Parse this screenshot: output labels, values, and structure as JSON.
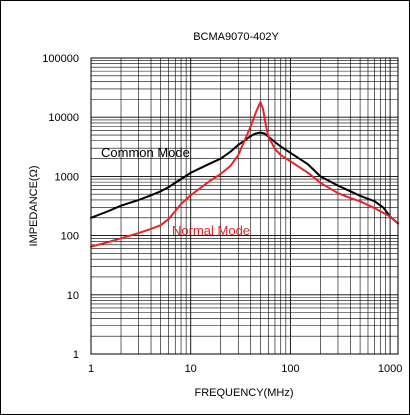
{
  "chart_data": {
    "type": "line",
    "title": "BCMA9070-402Y",
    "xlabel": "FREQUENCY(MHz)",
    "ylabel": "IMPEDANCE(Ω)",
    "x_scale": "log",
    "y_scale": "log",
    "xlim": [
      1,
      1200
    ],
    "ylim": [
      1,
      100000
    ],
    "x_ticks": [
      "1",
      "10",
      "100",
      "1000"
    ],
    "y_ticks": [
      "1",
      "10",
      "100",
      "1000",
      "10000",
      "100000"
    ],
    "grid": true,
    "series": [
      {
        "name": "Common Mode",
        "color": "#000000",
        "points": [
          [
            1,
            200
          ],
          [
            1.5,
            260
          ],
          [
            2,
            320
          ],
          [
            3,
            400
          ],
          [
            4,
            480
          ],
          [
            5,
            560
          ],
          [
            6,
            660
          ],
          [
            8,
            900
          ],
          [
            10,
            1150
          ],
          [
            15,
            1600
          ],
          [
            20,
            2000
          ],
          [
            25,
            2600
          ],
          [
            30,
            3400
          ],
          [
            40,
            4800
          ],
          [
            45,
            5300
          ],
          [
            50,
            5500
          ],
          [
            55,
            5300
          ],
          [
            60,
            4700
          ],
          [
            70,
            3800
          ],
          [
            80,
            3200
          ],
          [
            100,
            2500
          ],
          [
            150,
            1600
          ],
          [
            200,
            1000
          ],
          [
            300,
            700
          ],
          [
            400,
            560
          ],
          [
            500,
            470
          ],
          [
            700,
            380
          ],
          [
            850,
            300
          ],
          [
            1000,
            210
          ],
          [
            1200,
            160
          ]
        ]
      },
      {
        "name": "Normal Mode",
        "color": "#e8242a",
        "points": [
          [
            1,
            65
          ],
          [
            1.5,
            78
          ],
          [
            2,
            90
          ],
          [
            3,
            110
          ],
          [
            4,
            130
          ],
          [
            5,
            150
          ],
          [
            6,
            190
          ],
          [
            7,
            260
          ],
          [
            8,
            340
          ],
          [
            10,
            480
          ],
          [
            15,
            800
          ],
          [
            20,
            1100
          ],
          [
            25,
            1500
          ],
          [
            30,
            2300
          ],
          [
            40,
            7000
          ],
          [
            45,
            12000
          ],
          [
            50,
            18000
          ],
          [
            53,
            14000
          ],
          [
            57,
            7000
          ],
          [
            60,
            4700
          ],
          [
            70,
            2900
          ],
          [
            80,
            2300
          ],
          [
            100,
            1800
          ],
          [
            150,
            1150
          ],
          [
            200,
            780
          ],
          [
            300,
            520
          ],
          [
            400,
            430
          ],
          [
            500,
            380
          ],
          [
            700,
            290
          ],
          [
            1000,
            210
          ],
          [
            1200,
            160
          ]
        ]
      }
    ]
  }
}
